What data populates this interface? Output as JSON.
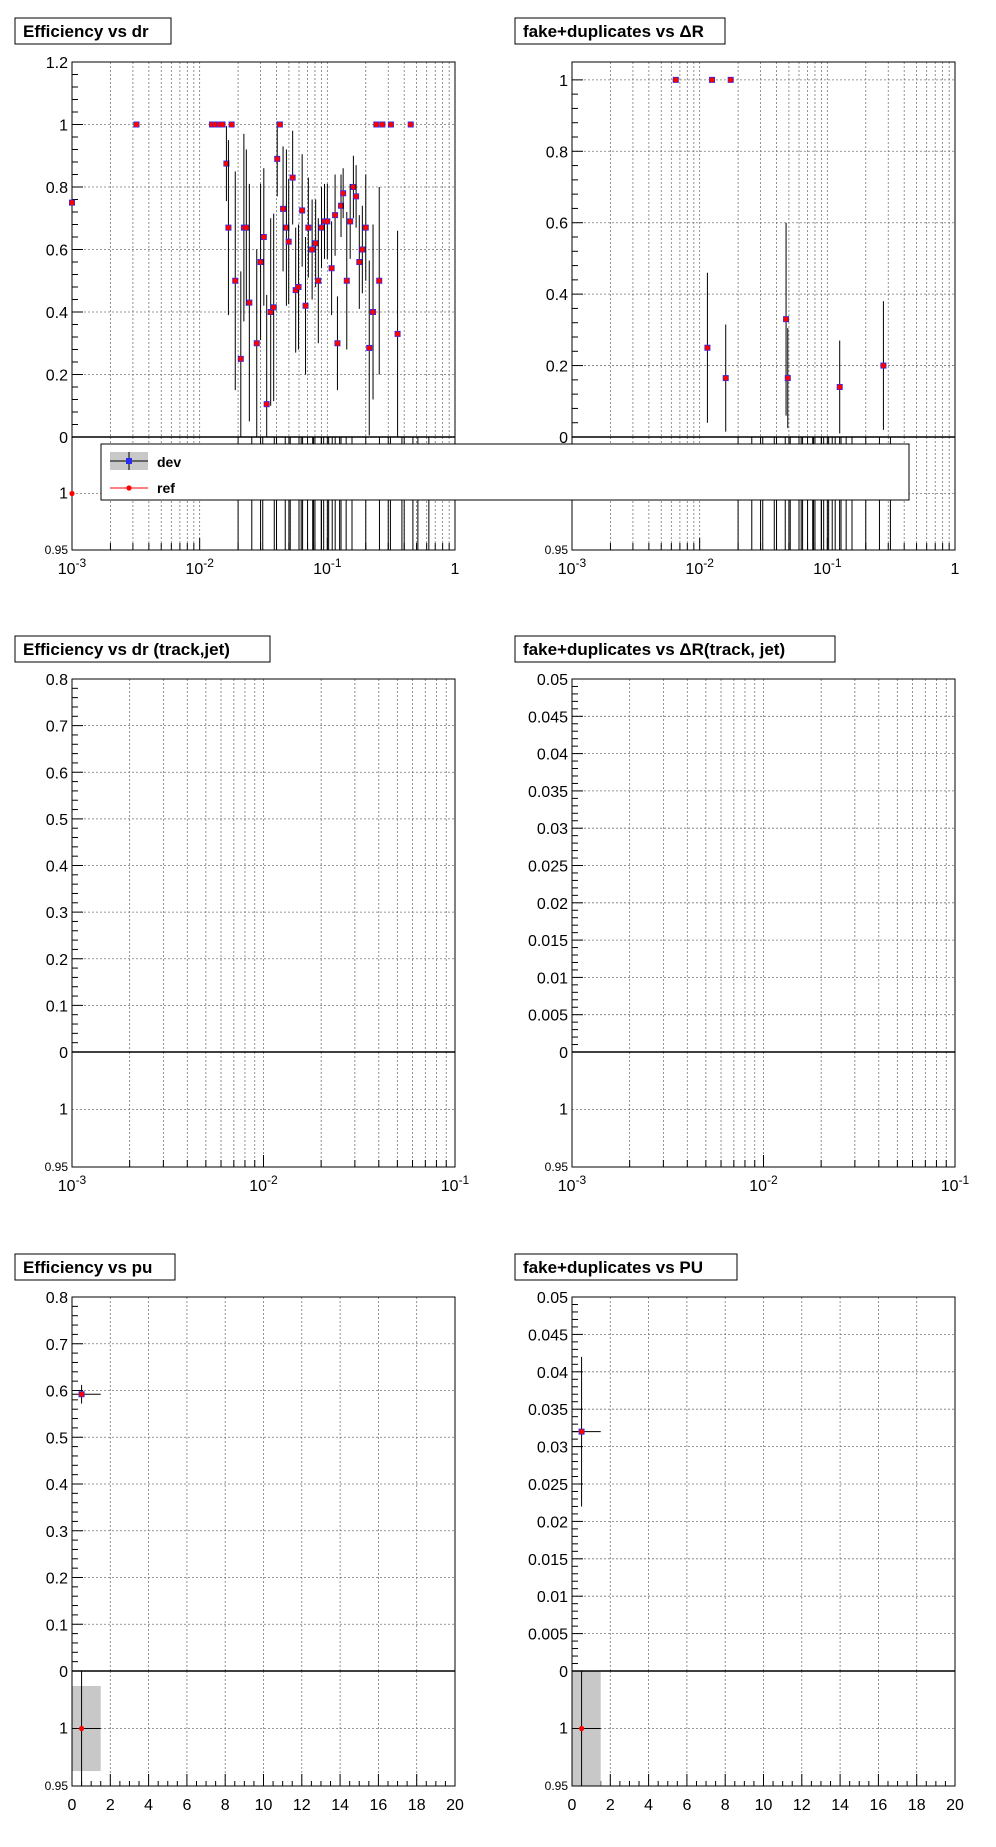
{
  "legend": {
    "dev": "dev",
    "ref": "ref",
    "dev_color": "#2a2af5",
    "ref_color": "#ff0000"
  },
  "colors": {
    "grid": "#777777",
    "frame": "#000000",
    "band": "#c8c8c8",
    "error_bar": "#000000"
  },
  "chart_data": [
    {
      "id": "eff-dr",
      "type": "scatter",
      "title": "Efficiency vs dr",
      "xscale": "log",
      "xlim": [
        0.001,
        1
      ],
      "ylim": [
        0,
        1.2
      ],
      "xticks": [
        [
          "10",
          "-3",
          0.001
        ],
        [
          "10",
          "-2",
          0.01
        ],
        [
          "10",
          "-1",
          0.1
        ],
        [
          "1",
          "",
          1
        ]
      ],
      "yticks": [
        [
          "0",
          0
        ],
        [
          "0.2",
          0.2
        ],
        [
          "0.4",
          0.4
        ],
        [
          "0.6",
          0.6
        ],
        [
          "0.8",
          0.8
        ],
        [
          "1",
          1
        ],
        [
          "1.2",
          1.2
        ]
      ],
      "ratio": {
        "ylim": [
          0.95,
          1.05
        ],
        "yticks": [
          [
            "0.95",
            0.95
          ],
          [
            "1",
            1
          ]
        ],
        "points": [
          [
            0.001,
            1
          ]
        ],
        "band_x": [
          0.0175,
          0.4
        ]
      },
      "points": [
        [
          0.001,
          0.75
        ],
        [
          0.0032,
          1.0
        ],
        [
          0.0125,
          1.0
        ],
        [
          0.0133,
          1.0
        ],
        [
          0.0142,
          1.0
        ],
        [
          0.0151,
          1.0
        ],
        [
          0.0162,
          0.875
        ],
        [
          0.0168,
          0.67
        ],
        [
          0.0178,
          1.0
        ],
        [
          0.019,
          0.5
        ],
        [
          0.021,
          0.25
        ],
        [
          0.0222,
          0.67
        ],
        [
          0.0232,
          0.67
        ],
        [
          0.0245,
          0.43
        ],
        [
          0.028,
          0.3
        ],
        [
          0.03,
          0.56
        ],
        [
          0.0318,
          0.64
        ],
        [
          0.0335,
          0.105
        ],
        [
          0.036,
          0.4
        ],
        [
          0.038,
          0.415
        ],
        [
          0.0405,
          0.89
        ],
        [
          0.0425,
          1.0
        ],
        [
          0.045,
          0.73
        ],
        [
          0.0478,
          0.67
        ],
        [
          0.0498,
          0.625
        ],
        [
          0.0535,
          0.83
        ],
        [
          0.0565,
          0.47
        ],
        [
          0.0595,
          0.48
        ],
        [
          0.0635,
          0.725
        ],
        [
          0.0675,
          0.42
        ],
        [
          0.071,
          0.67
        ],
        [
          0.076,
          0.6
        ],
        [
          0.081,
          0.62
        ],
        [
          0.085,
          0.5
        ],
        [
          0.09,
          0.67
        ],
        [
          0.095,
          0.69
        ],
        [
          0.1,
          0.69
        ],
        [
          0.108,
          0.54
        ],
        [
          0.115,
          0.71
        ],
        [
          0.12,
          0.3
        ],
        [
          0.128,
          0.74
        ],
        [
          0.133,
          0.78
        ],
        [
          0.142,
          0.5
        ],
        [
          0.151,
          0.69
        ],
        [
          0.16,
          0.8
        ],
        [
          0.168,
          0.77
        ],
        [
          0.178,
          0.56
        ],
        [
          0.188,
          0.6
        ],
        [
          0.2,
          0.67
        ],
        [
          0.213,
          0.285
        ],
        [
          0.228,
          0.4
        ],
        [
          0.242,
          1.0
        ],
        [
          0.255,
          0.5
        ],
        [
          0.27,
          1.0
        ],
        [
          0.315,
          1.0
        ],
        [
          0.355,
          0.33
        ],
        [
          0.45,
          1.0
        ]
      ],
      "errors": [
        0.15,
        0.0,
        0.0,
        0.0,
        0.0,
        0.0,
        0.12,
        0.28,
        0.0,
        0.35,
        0.28,
        0.3,
        0.25,
        0.38,
        0.3,
        0.25,
        0.22,
        0.35,
        0.3,
        0.3,
        0.12,
        0.0,
        0.2,
        0.25,
        0.2,
        0.15,
        0.2,
        0.2,
        0.18,
        0.22,
        0.16,
        0.16,
        0.14,
        0.2,
        0.13,
        0.12,
        0.12,
        0.15,
        0.13,
        0.15,
        0.1,
        0.08,
        0.22,
        0.12,
        0.1,
        0.1,
        0.15,
        0.14,
        0.17,
        0.28,
        0.28,
        0.0,
        0.3,
        0.0,
        0.0,
        0.33,
        0.0
      ]
    },
    {
      "id": "fake-dr",
      "type": "scatter",
      "title": "fake+duplicates vs ΔR",
      "xscale": "log",
      "xlim": [
        0.001,
        1
      ],
      "ylim": [
        0,
        1.05
      ],
      "xticks": [
        [
          "10",
          "-3",
          0.001
        ],
        [
          "10",
          "-2",
          0.01
        ],
        [
          "10",
          "-1",
          0.1
        ],
        [
          "1",
          "",
          1
        ]
      ],
      "yticks": [
        [
          "0",
          0
        ],
        [
          "0.2",
          0.2
        ],
        [
          "0.4",
          0.4
        ],
        [
          "0.6",
          0.6
        ],
        [
          "0.8",
          0.8
        ],
        [
          "1",
          1
        ]
      ],
      "ratio": {
        "ylim": [
          0.95,
          1.05
        ],
        "yticks": [
          [
            "0.95",
            0.95
          ],
          [
            "1",
            1
          ]
        ],
        "points": [],
        "band_x": [
          0.0115,
          0.3
        ]
      },
      "points": [
        [
          0.0065,
          1.0
        ],
        [
          0.0115,
          0.25
        ],
        [
          0.0125,
          1.0
        ],
        [
          0.016,
          0.165
        ],
        [
          0.0175,
          1.0
        ],
        [
          0.0475,
          0.33
        ],
        [
          0.049,
          0.165
        ],
        [
          0.125,
          0.14
        ],
        [
          0.275,
          0.2
        ]
      ],
      "errors": [
        0.0,
        0.21,
        0.0,
        0.15,
        0.0,
        0.27,
        0.14,
        0.13,
        0.18
      ]
    },
    {
      "id": "eff-drj",
      "type": "scatter",
      "title": "Efficiency vs dr (track,jet)",
      "xscale": "log",
      "xlim": [
        0.001,
        0.1
      ],
      "ylim": [
        0,
        0.8
      ],
      "xticks": [
        [
          "10",
          "-3",
          0.001
        ],
        [
          "10",
          "-2",
          0.01
        ],
        [
          "10",
          "-1",
          0.1
        ]
      ],
      "yticks": [
        [
          "0",
          0
        ],
        [
          "0.1",
          0.1
        ],
        [
          "0.2",
          0.2
        ],
        [
          "0.3",
          0.3
        ],
        [
          "0.4",
          0.4
        ],
        [
          "0.5",
          0.5
        ],
        [
          "0.6",
          0.6
        ],
        [
          "0.7",
          0.7
        ],
        [
          "0.8",
          0.8
        ]
      ],
      "ratio": {
        "ylim": [
          0.95,
          1.05
        ],
        "yticks": [
          [
            "0.95",
            0.95
          ],
          [
            "1",
            1
          ]
        ],
        "points": []
      },
      "points": [],
      "errors": []
    },
    {
      "id": "fake-drj",
      "type": "scatter",
      "title": "fake+duplicates vs  ΔR(track, jet)",
      "xscale": "log",
      "xlim": [
        0.001,
        0.1
      ],
      "ylim": [
        0,
        0.05
      ],
      "xticks": [
        [
          "10",
          "-3",
          0.001
        ],
        [
          "10",
          "-2",
          0.01
        ],
        [
          "10",
          "-1",
          0.1
        ]
      ],
      "yticks": [
        [
          "0",
          0
        ],
        [
          "0.005",
          0.005
        ],
        [
          "0.01",
          0.01
        ],
        [
          "0.015",
          0.015
        ],
        [
          "0.02",
          0.02
        ],
        [
          "0.025",
          0.025
        ],
        [
          "0.03",
          0.03
        ],
        [
          "0.035",
          0.035
        ],
        [
          "0.04",
          0.04
        ],
        [
          "0.045",
          0.045
        ],
        [
          "0.05",
          0.05
        ]
      ],
      "ratio": {
        "ylim": [
          0.95,
          1.05
        ],
        "yticks": [
          [
            "0.95",
            0.95
          ],
          [
            "1",
            1
          ]
        ],
        "points": []
      },
      "points": [],
      "errors": []
    },
    {
      "id": "eff-pu",
      "type": "scatter",
      "title": "Efficiency vs pu",
      "xscale": "linear",
      "xlim": [
        0,
        20
      ],
      "ylim": [
        0,
        0.8
      ],
      "xticks": [
        [
          "0",
          "",
          0
        ],
        [
          "2",
          "",
          2
        ],
        [
          "4",
          "",
          4
        ],
        [
          "6",
          "",
          6
        ],
        [
          "8",
          "",
          8
        ],
        [
          "10",
          "",
          10
        ],
        [
          "12",
          "",
          12
        ],
        [
          "14",
          "",
          14
        ],
        [
          "16",
          "",
          16
        ],
        [
          "18",
          "",
          18
        ],
        [
          "20",
          "",
          20
        ]
      ],
      "yticks": [
        [
          "0",
          0
        ],
        [
          "0.1",
          0.1
        ],
        [
          "0.2",
          0.2
        ],
        [
          "0.3",
          0.3
        ],
        [
          "0.4",
          0.4
        ],
        [
          "0.5",
          0.5
        ],
        [
          "0.6",
          0.6
        ],
        [
          "0.7",
          0.7
        ],
        [
          "0.8",
          0.8
        ]
      ],
      "ratio": {
        "ylim": [
          0.95,
          1.05
        ],
        "yticks": [
          [
            "0.95",
            0.95
          ],
          [
            "1",
            1
          ]
        ],
        "points": [
          [
            0.5,
            1
          ]
        ],
        "band_rect": [
          0,
          1.5,
          0.963,
          1.037
        ]
      },
      "points": [
        [
          0.5,
          0.592
        ]
      ],
      "errors": [
        0.02
      ],
      "xerr": [
        [
          -0.5,
          1.5
        ]
      ]
    },
    {
      "id": "fake-pu",
      "type": "scatter",
      "title": "fake+duplicates vs PU",
      "xscale": "linear",
      "xlim": [
        0,
        20
      ],
      "ylim": [
        0,
        0.05
      ],
      "xticks": [
        [
          "0",
          "",
          0
        ],
        [
          "2",
          "",
          2
        ],
        [
          "4",
          "",
          4
        ],
        [
          "6",
          "",
          6
        ],
        [
          "8",
          "",
          8
        ],
        [
          "10",
          "",
          10
        ],
        [
          "12",
          "",
          12
        ],
        [
          "14",
          "",
          14
        ],
        [
          "16",
          "",
          16
        ],
        [
          "18",
          "",
          18
        ],
        [
          "20",
          "",
          20
        ]
      ],
      "yticks": [
        [
          "0",
          0
        ],
        [
          "0.005",
          0.005
        ],
        [
          "0.01",
          0.01
        ],
        [
          "0.015",
          0.015
        ],
        [
          "0.02",
          0.02
        ],
        [
          "0.025",
          0.025
        ],
        [
          "0.03",
          0.03
        ],
        [
          "0.035",
          0.035
        ],
        [
          "0.04",
          0.04
        ],
        [
          "0.045",
          0.045
        ],
        [
          "0.05",
          0.05
        ]
      ],
      "ratio": {
        "ylim": [
          0.95,
          1.05
        ],
        "yticks": [
          [
            "0.95",
            0.95
          ],
          [
            "1",
            1
          ]
        ],
        "points": [
          [
            0.5,
            1
          ]
        ],
        "band_rect": [
          0,
          1.5,
          0.95,
          1.05
        ]
      },
      "points": [
        [
          0.5,
          0.032
        ]
      ],
      "errors": [
        0.01
      ],
      "xerr": [
        [
          -0.5,
          1.5
        ]
      ]
    }
  ]
}
